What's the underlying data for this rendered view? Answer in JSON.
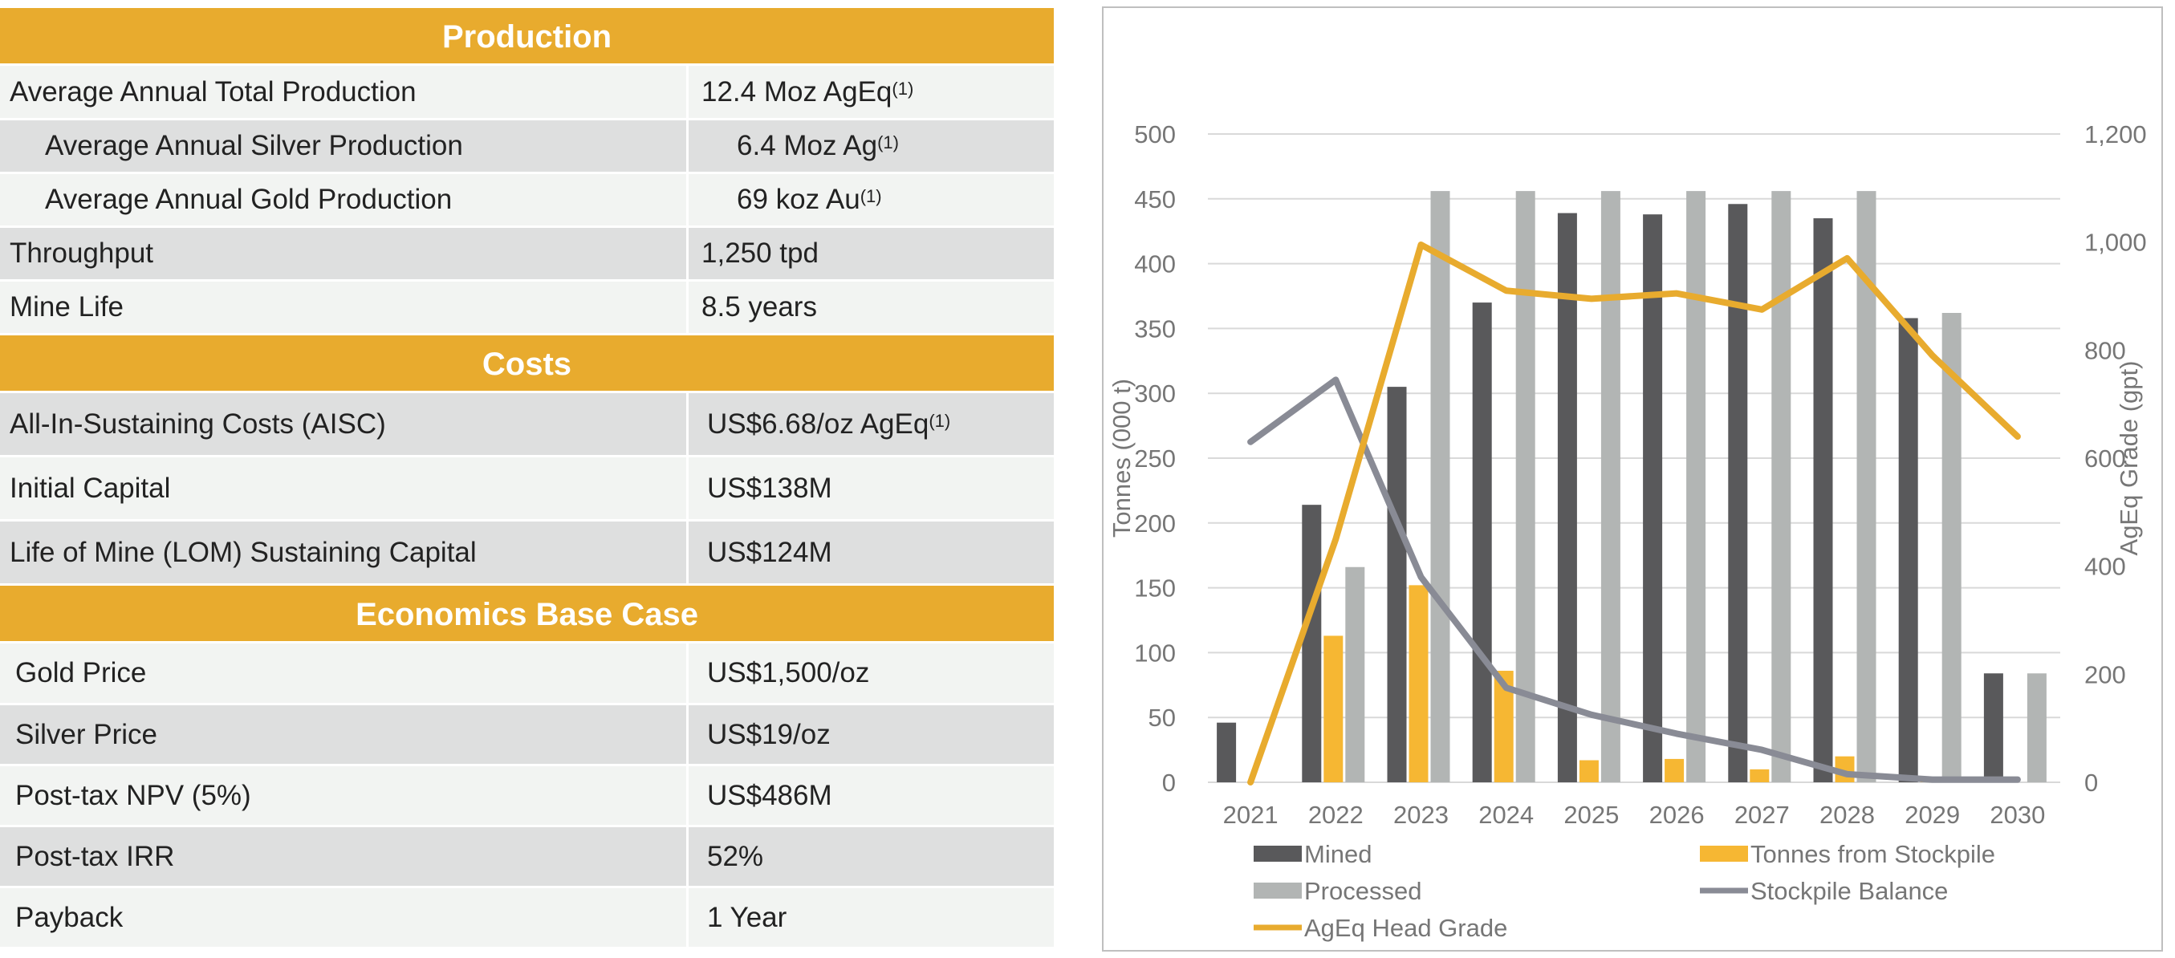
{
  "table": {
    "sections": [
      {
        "header": "Production",
        "rows": [
          {
            "label": "Average Annual Total Production",
            "value": "12.4 Moz AgEq",
            "note": "(1)",
            "indent": false
          },
          {
            "label": "Average Annual Silver Production",
            "value": "6.4 Moz Ag",
            "note": "(1)",
            "indent": true
          },
          {
            "label": "Average Annual Gold Production",
            "value": "69 koz Au",
            "note": "(1)",
            "indent": true
          },
          {
            "label": "Throughput",
            "value": "1,250 tpd",
            "note": "",
            "indent": false
          },
          {
            "label": "Mine Life",
            "value": "8.5 years",
            "note": "",
            "indent": false
          }
        ]
      },
      {
        "header": "Costs",
        "rows": [
          {
            "label": "All-In-Sustaining Costs (AISC)",
            "value": "US$6.68/oz AgEq",
            "note": "(1)",
            "indent": false
          },
          {
            "label": "Initial Capital",
            "value": "US$138M",
            "note": "",
            "indent": false
          },
          {
            "label": "Life of Mine (LOM) Sustaining Capital",
            "value": "US$124M",
            "note": "",
            "indent": false
          }
        ]
      },
      {
        "header": "Economics Base Case",
        "rows": [
          {
            "label": "Gold Price",
            "value": "US$1,500/oz",
            "note": "",
            "indent": false
          },
          {
            "label": "Silver Price",
            "value": "US$19/oz",
            "note": "",
            "indent": false
          },
          {
            "label": "Post-tax NPV (5%)",
            "value": "US$486M",
            "note": "",
            "indent": false
          },
          {
            "label": "Post-tax IRR",
            "value": "52%",
            "note": "",
            "indent": false
          },
          {
            "label": "Payback",
            "value": "1 Year",
            "note": "",
            "indent": false
          }
        ]
      }
    ]
  },
  "colors": {
    "header_bg": "#e8ab2e",
    "row_light": "#f2f4f2",
    "row_dark": "#dedfdf",
    "mined": "#59595b",
    "processed": "#b2b5b4",
    "stockpile_tonnes": "#f6b733",
    "stockpile_balance": "#898b95",
    "head_grade": "#e8ab2e"
  },
  "chart_data": {
    "type": "bar",
    "title": "",
    "categories": [
      "2021",
      "2022",
      "2023",
      "2024",
      "2025",
      "2026",
      "2027",
      "2028",
      "2029",
      "2030"
    ],
    "ylabel": "Tonnes (000 t)",
    "y2label": "AgEq Grade (gpt)",
    "ylim": [
      0,
      500
    ],
    "y2lim": [
      0,
      1200
    ],
    "yticks": [
      0,
      50,
      100,
      150,
      200,
      250,
      300,
      350,
      400,
      450,
      500
    ],
    "y2ticks": [
      0,
      200,
      400,
      600,
      800,
      1000,
      1200
    ],
    "y2tick_labels": [
      "0",
      "200",
      "400",
      "600",
      "800",
      "1,000",
      "1,200"
    ],
    "grid": true,
    "legend_position": "bottom",
    "series": [
      {
        "name": "Mined",
        "type": "bar",
        "axis": "left",
        "values": [
          46,
          214,
          305,
          370,
          439,
          438,
          446,
          435,
          358,
          84
        ]
      },
      {
        "name": "Tonnes from Stockpile",
        "type": "bar",
        "axis": "left",
        "values": [
          0,
          113,
          152,
          86,
          17,
          18,
          10,
          20,
          3,
          0
        ]
      },
      {
        "name": "Processed",
        "type": "bar",
        "axis": "left",
        "values": [
          0,
          166,
          456,
          456,
          456,
          456,
          456,
          456,
          362,
          84
        ]
      },
      {
        "name": "Stockpile Balance",
        "type": "line",
        "axis": "right",
        "values": [
          630,
          745,
          380,
          175,
          125,
          90,
          60,
          15,
          5,
          5
        ]
      },
      {
        "name": "AgEq Head Grade",
        "type": "line",
        "axis": "right",
        "values": [
          0,
          450,
          995,
          910,
          895,
          905,
          875,
          970,
          790,
          640
        ]
      }
    ],
    "legend": [
      "Mined",
      "Tonnes from Stockpile",
      "Processed",
      "Stockpile Balance",
      "AgEq Head Grade"
    ]
  }
}
